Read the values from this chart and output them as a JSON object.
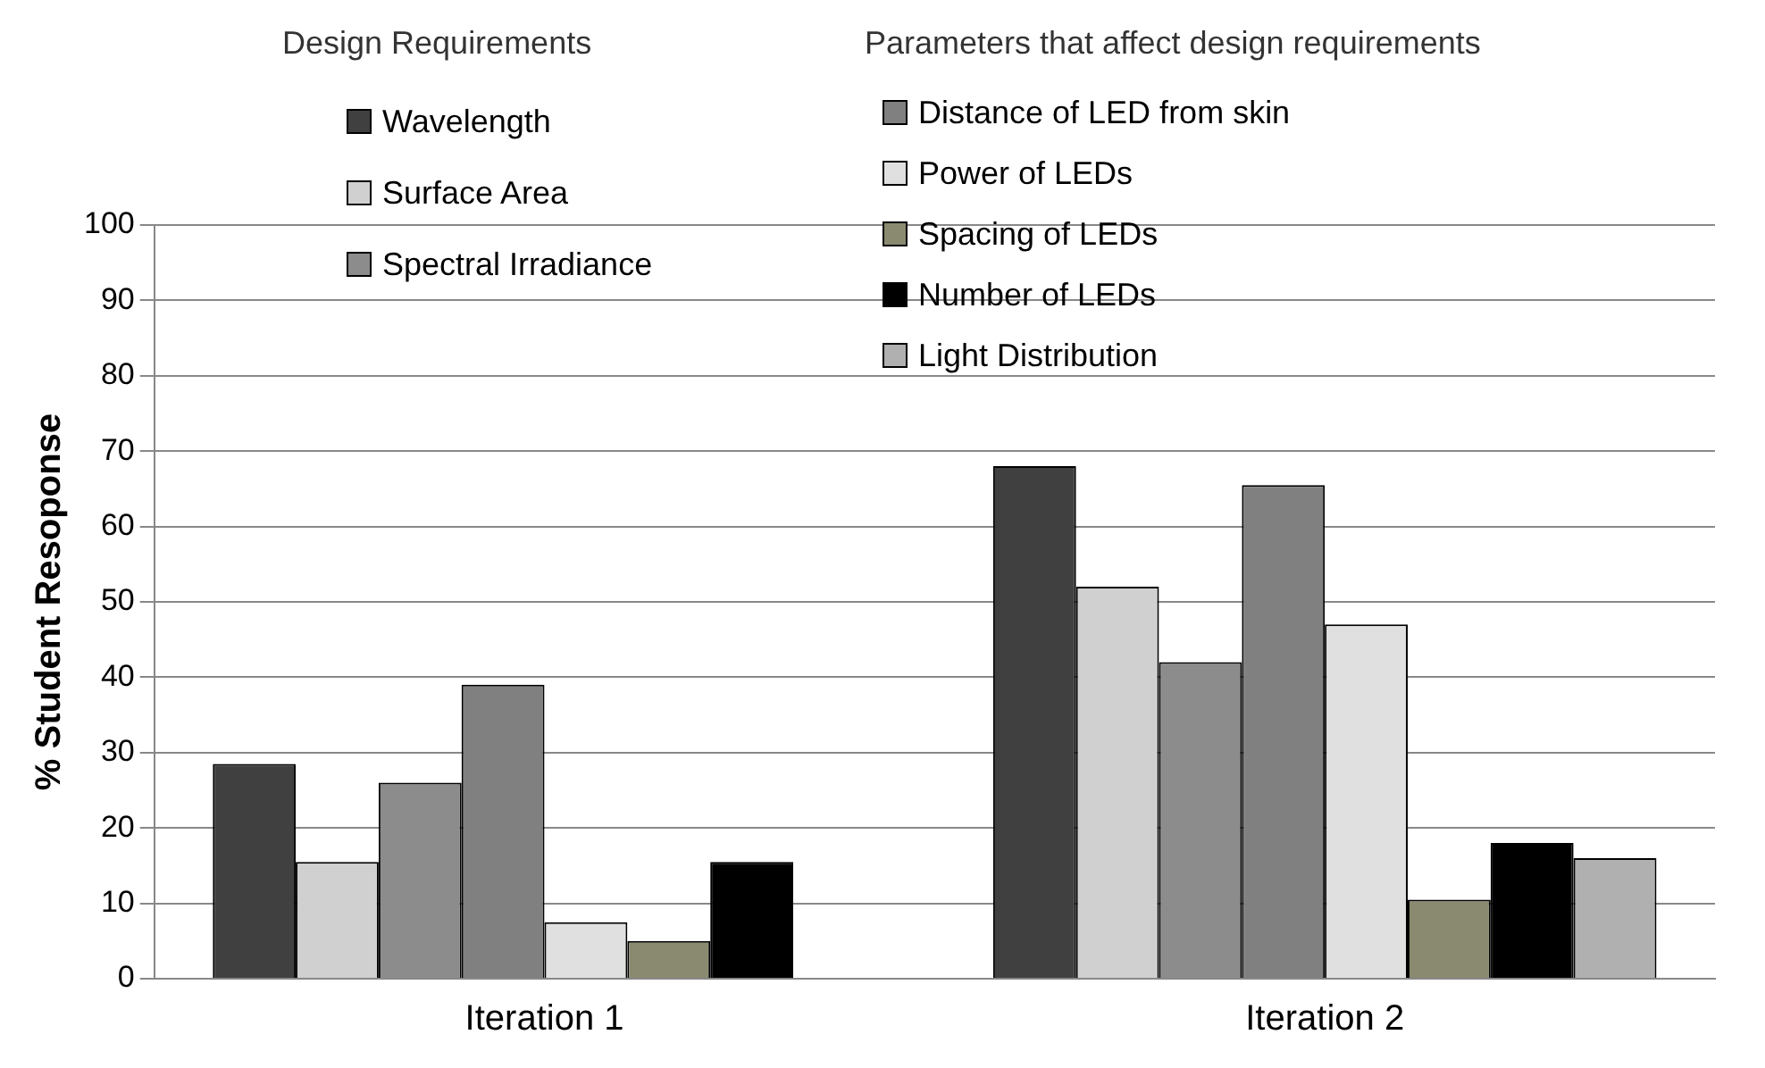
{
  "chart_data": {
    "type": "bar",
    "ylabel": "% Student Resoponse",
    "categories": [
      "Iteration 1",
      "Iteration 2"
    ],
    "series": [
      {
        "name": "Wavelength",
        "color": "#404040",
        "values": [
          28.5,
          68
        ]
      },
      {
        "name": "Surface Area",
        "color": "#d0d0d0",
        "values": [
          15.5,
          52
        ]
      },
      {
        "name": "Spectral Irradiance",
        "color": "#8c8c8c",
        "values": [
          26,
          42
        ]
      },
      {
        "name": "Distance of LED from skin",
        "color": "#808080",
        "values": [
          39,
          65.5
        ]
      },
      {
        "name": "Power of LEDs",
        "color": "#e0e0e0",
        "values": [
          7.5,
          47
        ]
      },
      {
        "name": "Spacing of LEDs",
        "color": "#8a8a70",
        "values": [
          5,
          10.5
        ]
      },
      {
        "name": "Number of LEDs",
        "color": "#000000",
        "values": [
          15.5,
          18
        ]
      },
      {
        "name": "Light Distribution",
        "color": "#b0b0b0",
        "values": [
          null,
          16
        ]
      }
    ],
    "ylim": [
      0,
      100
    ],
    "yticks": [
      0,
      10,
      20,
      30,
      40,
      50,
      60,
      70,
      80,
      90,
      100
    ],
    "grid": "y",
    "legend": "top",
    "annotations": [
      "Design Requirements",
      "Parameters that affect design requirements"
    ]
  }
}
